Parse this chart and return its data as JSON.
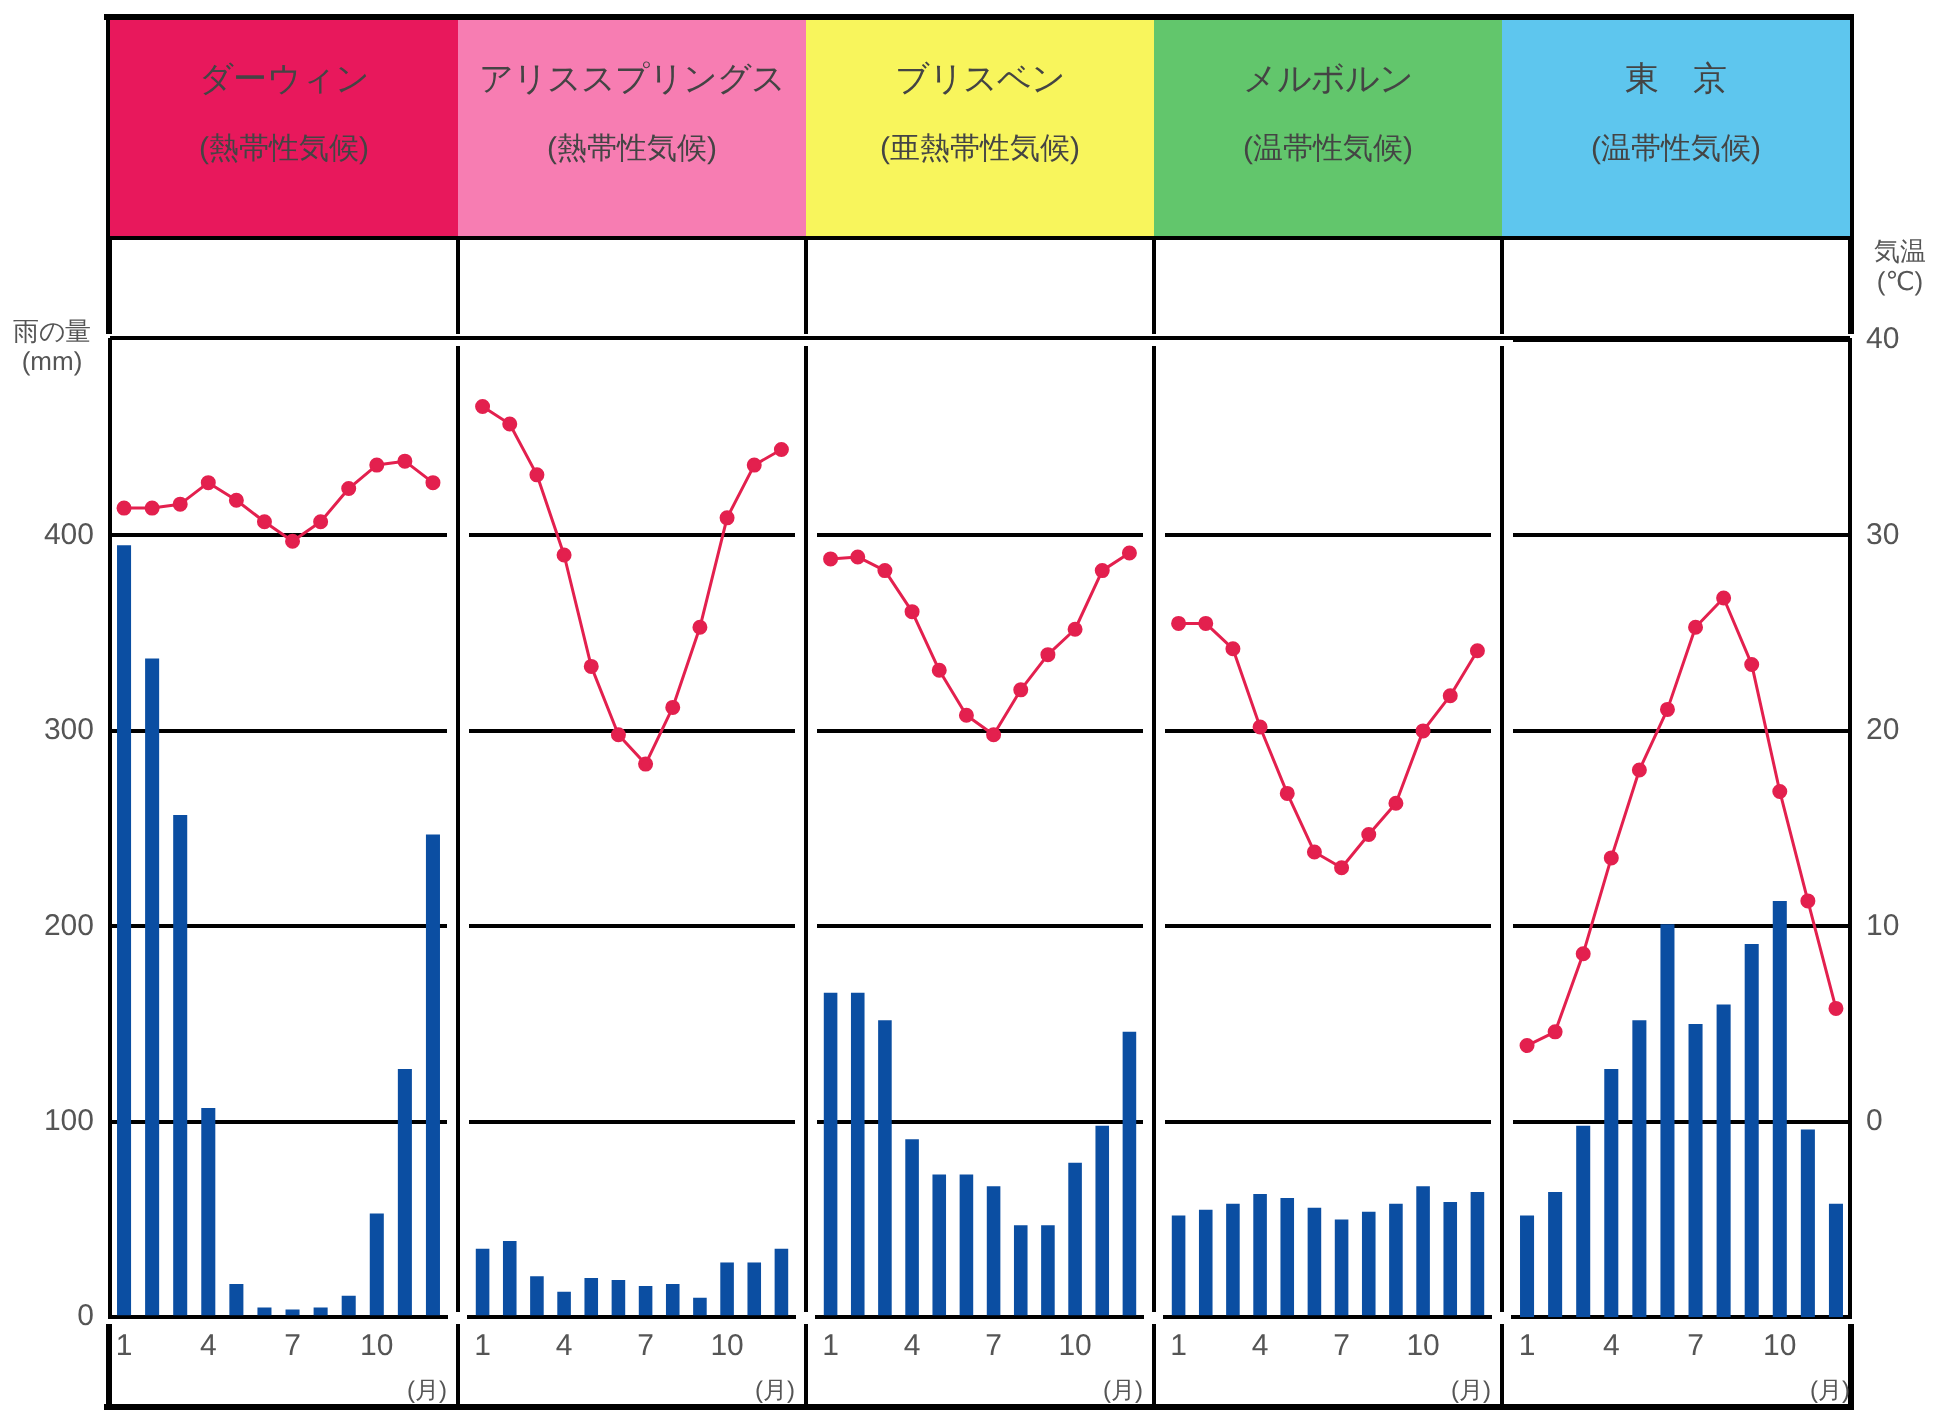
{
  "chart_data": [
    {
      "type": "bar",
      "title": "ダーウィン",
      "subtitle": "(熱帯性気候)",
      "ylabel": "雨の量(mm)",
      "xlabel": "(月)",
      "categories": [
        "1",
        null,
        null,
        "4",
        null,
        null,
        "7",
        null,
        null,
        "10",
        null,
        null
      ],
      "ylim": [
        0,
        500
      ],
      "yticks": [
        0,
        100,
        200,
        300,
        400
      ],
      "y2lim": [
        -10,
        40
      ],
      "grid": "y",
      "legend": false,
      "series": [
        {
          "color": "#0b4ea2",
          "values": [
            395,
            337,
            257,
            107,
            17,
            5,
            4,
            5,
            11,
            53,
            127,
            247
          ]
        },
        {
          "type": "line",
          "axis": "y2",
          "color": "#e3204e",
          "marker": "circle",
          "line_style": "solid",
          "values": [
            31.4,
            31.4,
            31.6,
            32.7,
            31.8,
            30.7,
            29.7,
            30.7,
            32.4,
            33.6,
            33.8,
            32.7
          ]
        }
      ]
    },
    {
      "type": "bar",
      "title": "アリススプリングス",
      "subtitle": "(熱帯性気候)",
      "xlabel": "(月)",
      "categories": [
        "1",
        null,
        null,
        "4",
        null,
        null,
        "7",
        null,
        null,
        "10",
        null,
        null
      ],
      "ylim": [
        0,
        500
      ],
      "yticks": [
        0,
        100,
        200,
        300,
        400
      ],
      "y2lim": [
        -10,
        40
      ],
      "grid": "y",
      "legend": false,
      "tick_labels": "x",
      "series": [
        {
          "color": "#0b4ea2",
          "values": [
            35,
            39,
            21,
            13,
            20,
            19,
            16,
            17,
            10,
            28,
            28,
            35
          ]
        },
        {
          "type": "line",
          "axis": "y2",
          "color": "#e3204e",
          "marker": "circle",
          "line_style": "solid",
          "values": [
            36.6,
            35.7,
            33.1,
            29.0,
            23.3,
            19.8,
            18.3,
            21.2,
            25.3,
            30.9,
            33.6,
            34.4
          ]
        }
      ]
    },
    {
      "type": "bar",
      "title": "ブリスベン",
      "subtitle": "(亜熱帯性気候)",
      "xlabel": "(月)",
      "categories": [
        "1",
        null,
        null,
        "4",
        null,
        null,
        "7",
        null,
        null,
        "10",
        null,
        null
      ],
      "ylim": [
        0,
        500
      ],
      "yticks": [
        0,
        100,
        200,
        300,
        400
      ],
      "y2lim": [
        -10,
        40
      ],
      "grid": "y",
      "legend": false,
      "tick_labels": "x",
      "series": [
        {
          "color": "#0b4ea2",
          "values": [
            166,
            166,
            152,
            91,
            73,
            73,
            67,
            47,
            47,
            79,
            98,
            146
          ]
        },
        {
          "type": "line",
          "axis": "y2",
          "color": "#e3204e",
          "marker": "circle",
          "line_style": "solid",
          "values": [
            28.8,
            28.9,
            28.2,
            26.1,
            23.1,
            20.8,
            19.8,
            22.1,
            23.9,
            25.2,
            28.2,
            29.1
          ]
        }
      ]
    },
    {
      "type": "bar",
      "title": "メルボルン",
      "subtitle": "(温帯性気候)",
      "xlabel": "(月)",
      "categories": [
        "1",
        null,
        null,
        "4",
        null,
        null,
        "7",
        null,
        null,
        "10",
        null,
        null
      ],
      "ylim": [
        0,
        500
      ],
      "yticks": [
        0,
        100,
        200,
        300,
        400
      ],
      "y2lim": [
        -10,
        40
      ],
      "grid": "y",
      "legend": false,
      "tick_labels": "x",
      "series": [
        {
          "color": "#0b4ea2",
          "values": [
            52,
            55,
            58,
            63,
            61,
            56,
            50,
            54,
            58,
            67,
            59,
            64
          ]
        },
        {
          "type": "line",
          "axis": "y2",
          "color": "#e3204e",
          "marker": "circle",
          "line_style": "solid",
          "values": [
            25.5,
            25.5,
            24.2,
            20.2,
            16.8,
            13.8,
            13.0,
            14.7,
            16.3,
            20.0,
            21.8,
            24.1
          ]
        }
      ]
    },
    {
      "type": "bar",
      "title": "東　京",
      "subtitle": "(温帯性気候)",
      "y2label": "気温(℃)",
      "xlabel": "(月)",
      "categories": [
        "1",
        null,
        null,
        "4",
        null,
        null,
        "7",
        null,
        null,
        "10",
        null,
        null
      ],
      "ylim": [
        0,
        500
      ],
      "y2lim": [
        -10,
        40
      ],
      "y2ticks": [
        0,
        10,
        20,
        30,
        40
      ],
      "grid": "y",
      "legend": false,
      "series": [
        {
          "color": "#0b4ea2",
          "values": [
            52,
            64,
            98,
            127,
            152,
            201,
            150,
            160,
            191,
            213,
            96,
            58
          ]
        },
        {
          "type": "line",
          "axis": "y2",
          "color": "#e3204e",
          "marker": "circle",
          "line_style": "solid",
          "values": [
            3.9,
            4.6,
            8.6,
            13.5,
            18.0,
            21.1,
            25.3,
            26.8,
            23.4,
            16.9,
            11.3,
            5.8
          ]
        }
      ]
    }
  ]
}
